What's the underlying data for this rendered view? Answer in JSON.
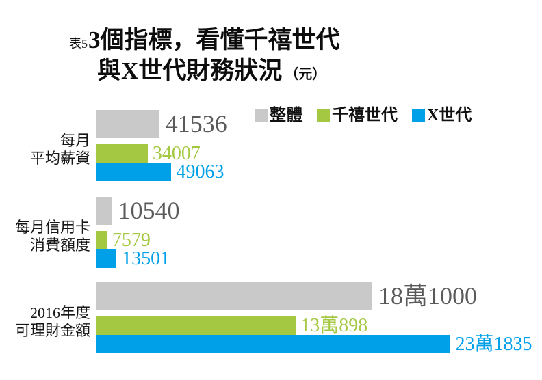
{
  "header": {
    "tag": "表5",
    "title_line1": "3個指標，看懂千禧世代",
    "title_line2": "與X世代財務狀況",
    "unit_suffix": "（元）"
  },
  "legend": [
    {
      "key": "overall",
      "label": "整體",
      "color": "#c9c9c9"
    },
    {
      "key": "millennials",
      "label": "千禧世代",
      "color": "#a5c843"
    },
    {
      "key": "gen-x",
      "label": "X世代",
      "color": "#00a0e9"
    }
  ],
  "chart_data": {
    "type": "bar",
    "orientation": "horizontal",
    "unit": "元",
    "grid": false,
    "legend_position": "top-right",
    "value_range": [
      0,
      240000
    ],
    "series_names": [
      "整體",
      "千禧世代",
      "X世代"
    ],
    "series_colors": [
      "#c9c9c9",
      "#a5c843",
      "#00a0e9"
    ],
    "value_label_colors": [
      "#5a5a5a",
      "#a5c843",
      "#00a0e9"
    ],
    "categories": [
      {
        "label": "每月平均薪資",
        "label_lines": [
          "每月",
          "平均薪資"
        ],
        "values": [
          41536,
          34007,
          49063
        ],
        "value_labels": [
          "41536",
          "34007",
          "49063"
        ]
      },
      {
        "label": "每月信用卡消費額度",
        "label_lines": [
          "每月信用卡",
          "消費額度"
        ],
        "values": [
          10540,
          7579,
          13501
        ],
        "value_labels": [
          "10540",
          "7579",
          "13501"
        ]
      },
      {
        "label": "2016年度可理財金額",
        "label_lines": [
          "2016年度",
          "可理財金額"
        ],
        "values": [
          181000,
          130898,
          231835
        ],
        "value_labels": [
          "18萬1000",
          "13萬898",
          "23萬1835"
        ]
      }
    ]
  }
}
